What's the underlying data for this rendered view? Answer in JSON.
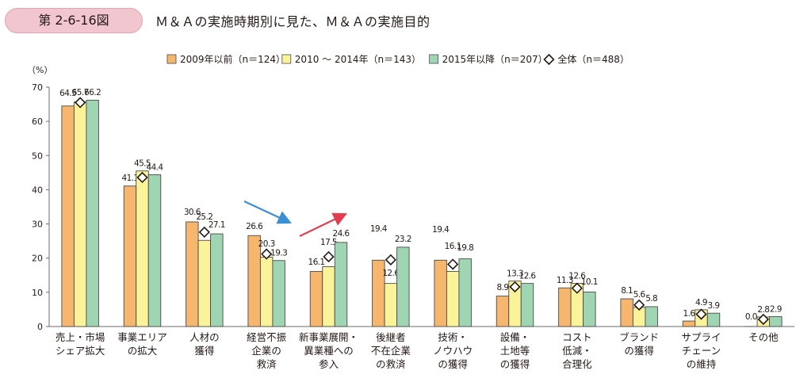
{
  "figure": {
    "number": "第 2-6-16図",
    "title": "Ｍ＆Ａの実施時期別に見た、Ｍ＆Ａの実施目的"
  },
  "colors": {
    "s2009": "#f6b66d",
    "s2010": "#fbf39a",
    "s2015": "#9fd5b2",
    "stroke": "#4a4a4a",
    "blue_arrow": "#3a8fd6",
    "red_arrow": "#e63c50"
  },
  "chart_data": {
    "type": "bar",
    "ylabel": "（%）",
    "ylim": [
      0,
      70
    ],
    "yticks": [
      0,
      10,
      20,
      30,
      40,
      50,
      60,
      70
    ],
    "legend_position": "top",
    "grid": false,
    "categories": [
      [
        "売上・市場",
        "シェア拡大"
      ],
      [
        "事業エリア",
        "の拡大"
      ],
      [
        "人材の",
        "獲得"
      ],
      [
        "経営不振",
        "企業の",
        "救済"
      ],
      [
        "新事業展開・",
        "異業種への",
        "参入"
      ],
      [
        "後継者",
        "不在企業",
        "の救済"
      ],
      [
        "技術・",
        "ノウハウ",
        "の獲得"
      ],
      [
        "設備・",
        "土地等",
        "の獲得"
      ],
      [
        "コスト",
        "低減・",
        "合理化"
      ],
      [
        "ブランド",
        "の獲得"
      ],
      [
        "サプライ",
        "チェーン",
        "の維持"
      ],
      [
        "その他"
      ]
    ],
    "series": [
      {
        "name": "2009年以前（n＝124）",
        "values": [
          64.5,
          41.1,
          30.6,
          26.6,
          16.1,
          19.4,
          19.4,
          8.9,
          11.3,
          8.1,
          1.6,
          0.0
        ],
        "labels": [
          "64.5",
          "41.1",
          "30.6",
          "26.6",
          "16.1",
          "19.4",
          "19.4",
          "8.9",
          "11.3",
          "8.1",
          "1.6",
          "0.0"
        ]
      },
      {
        "name": "2010 ～ 2014年（n＝143）",
        "values": [
          65.7,
          45.5,
          25.2,
          20.3,
          17.5,
          12.6,
          16.1,
          13.3,
          12.6,
          5.6,
          4.9,
          2.8
        ],
        "labels": [
          "65.7",
          "45.5",
          "25.2",
          "20.3",
          "17.5",
          "12.6",
          "16.1",
          "13.3",
          "12.6",
          "5.6",
          "4.9",
          "2.8"
        ]
      },
      {
        "name": "2015年以降（n＝207）",
        "values": [
          66.2,
          44.4,
          27.1,
          19.3,
          24.6,
          23.2,
          19.8,
          12.6,
          10.1,
          5.8,
          3.9,
          2.9
        ],
        "labels": [
          "66.2",
          "44.4",
          "27.1",
          "19.3",
          "24.6",
          "23.2",
          "19.8",
          "12.6",
          "10.1",
          "5.8",
          "3.9",
          "2.9"
        ]
      }
    ],
    "overall": {
      "name": "全体（n＝488）",
      "values": [
        65.5,
        43.6,
        27.6,
        21.2,
        20.4,
        19.5,
        18.2,
        11.6,
        11.2,
        6.3,
        3.6,
        2.1
      ]
    },
    "annotations": [
      {
        "type": "arrow",
        "color": "blue",
        "category_index": 3,
        "direction": "down"
      },
      {
        "type": "arrow",
        "color": "red",
        "category_index": 4,
        "direction": "up"
      }
    ]
  }
}
